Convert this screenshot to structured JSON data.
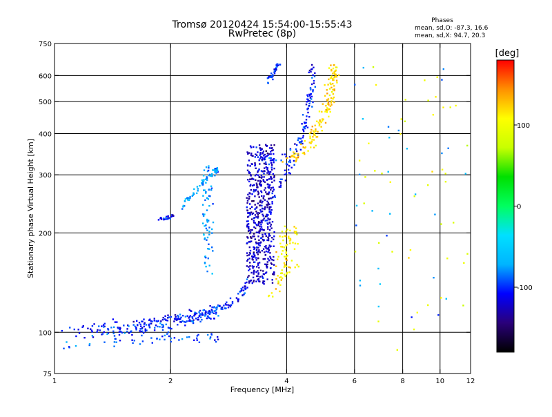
{
  "chart_data": {
    "type": "scatter",
    "title": "Tromsø 20120424 15:54:00-15:55:43",
    "subtitle": "RwPretec (8p)",
    "xlabel": "Frequency [MHz]",
    "ylabel": "Stationary phase Virtual Height [km]",
    "x_scale": "log",
    "y_scale": "log",
    "xlim": [
      1,
      12
    ],
    "ylim": [
      75,
      750
    ],
    "x_ticks": [
      1,
      2,
      4,
      6,
      8,
      10,
      12
    ],
    "x_tick_labels": [
      "1",
      "2",
      "4",
      "6",
      "8",
      "10",
      "12"
    ],
    "y_ticks": [
      75,
      100,
      200,
      300,
      400,
      500,
      600,
      750
    ],
    "y_tick_labels": [
      "75",
      "100",
      "200",
      "300",
      "400",
      "500",
      "600",
      "750"
    ],
    "x_grid": [
      2,
      4,
      6,
      8,
      10
    ],
    "y_grid": [
      100,
      200,
      300,
      400,
      500,
      600
    ],
    "grid": true,
    "stats": {
      "heading": "Phases",
      "line1": "mean, sd,O: -87.3, 16.6",
      "line2": "mean, sd,X:  94.7, 20.3"
    },
    "colorbar": {
      "label": "[deg]",
      "range": [
        -180,
        180
      ],
      "ticks": [
        100,
        0,
        -100
      ],
      "tick_labels": [
        "100",
        "0",
        "-100"
      ],
      "colors": [
        "#000000",
        "#2a007a",
        "#0000ff",
        "#00b4ff",
        "#00e0ff",
        "#00ff60",
        "#00e000",
        "#c8ff00",
        "#ffff00",
        "#ff9000",
        "#ff0000"
      ]
    },
    "traces": [
      {
        "name": "",
        "mode": "curve",
        "phase": -110,
        "count": 240,
        "jitter": 0.025,
        "points": [
          [
            1.03,
            100
          ],
          [
            1.2,
            104
          ],
          [
            1.5,
            106
          ],
          [
            1.8,
            107.5
          ],
          [
            2.0,
            110
          ],
          [
            2.3,
            113
          ],
          [
            2.6,
            117
          ],
          [
            2.8,
            120
          ],
          [
            3.0,
            127
          ],
          [
            3.15,
            138
          ],
          [
            3.3,
            160
          ],
          [
            3.45,
            195
          ],
          [
            3.6,
            240
          ],
          [
            3.8,
            275
          ],
          [
            4.0,
            305
          ],
          [
            4.2,
            340
          ],
          [
            4.4,
            395
          ],
          [
            4.5,
            450
          ],
          [
            4.6,
            530
          ],
          [
            4.65,
            640
          ]
        ]
      },
      {
        "name": "",
        "mode": "curve",
        "phase": -100,
        "count": 180,
        "jitter": 0.03,
        "points": [
          [
            1.25,
            100
          ],
          [
            1.5,
            101
          ],
          [
            1.7,
            103
          ],
          [
            1.9,
            105
          ],
          [
            2.1,
            108
          ],
          [
            2.3,
            111
          ],
          [
            2.5,
            114
          ],
          [
            2.7,
            117
          ]
        ]
      },
      {
        "name": "",
        "mode": "curve",
        "phase": -95,
        "count": 55,
        "jitter": 0.03,
        "points": [
          [
            1.05,
            92
          ],
          [
            1.3,
            94
          ],
          [
            1.6,
            95
          ],
          [
            1.9,
            96
          ],
          [
            2.2,
            96
          ],
          [
            2.5,
            97
          ],
          [
            2.7,
            97
          ]
        ]
      },
      {
        "name": "",
        "mode": "curve",
        "phase": -75,
        "count": 60,
        "jitter": 0.015,
        "points": [
          [
            2.15,
            240
          ],
          [
            2.3,
            265
          ],
          [
            2.45,
            290
          ],
          [
            2.6,
            305
          ],
          [
            2.65,
            310
          ]
        ]
      },
      {
        "name": "",
        "mode": "curve",
        "phase": -100,
        "count": 50,
        "jitter": 0.025,
        "points": [
          [
            3.35,
            360
          ],
          [
            3.6,
            332
          ],
          [
            3.85,
            336
          ],
          [
            4.1,
            350
          ],
          [
            4.3,
            375
          ],
          [
            4.5,
            420
          ],
          [
            4.6,
            480
          ],
          [
            4.65,
            560
          ],
          [
            4.7,
            640
          ]
        ]
      },
      {
        "name": "",
        "mode": "curve",
        "phase": -100,
        "count": 35,
        "jitter": 0.015,
        "points": [
          [
            3.55,
            575
          ],
          [
            3.65,
            600
          ],
          [
            3.75,
            630
          ],
          [
            3.85,
            655
          ]
        ]
      },
      {
        "name": "",
        "mode": "curve",
        "phase": -110,
        "count": 22,
        "jitter": 0.01,
        "points": [
          [
            1.85,
            218
          ],
          [
            1.95,
            222
          ],
          [
            2.05,
            225
          ]
        ]
      },
      {
        "name": "",
        "mode": "box",
        "phase": -75,
        "count": 70,
        "range": [
          [
            2.42,
            2.58
          ],
          [
            150,
            320
          ]
        ]
      },
      {
        "name": "",
        "mode": "box",
        "phase": -125,
        "count": 520,
        "range": [
          [
            3.15,
            3.72
          ],
          [
            140,
            370
          ]
        ]
      },
      {
        "name": "",
        "mode": "curve",
        "phase": 120,
        "count": 150,
        "jitter": 0.035,
        "points": [
          [
            4.0,
            335
          ],
          [
            4.3,
            345
          ],
          [
            4.6,
            380
          ],
          [
            4.85,
            420
          ],
          [
            5.05,
            470
          ],
          [
            5.2,
            530
          ],
          [
            5.3,
            590
          ],
          [
            5.35,
            640
          ]
        ]
      },
      {
        "name": "",
        "mode": "curve",
        "phase": 115,
        "count": 45,
        "jitter": 0.025,
        "points": [
          [
            3.6,
            128
          ],
          [
            3.75,
            132
          ],
          [
            3.85,
            142
          ],
          [
            3.95,
            165
          ],
          [
            4.05,
            185
          ],
          [
            4.2,
            205
          ]
        ]
      },
      {
        "name": "",
        "mode": "box",
        "phase": 110,
        "count": 40,
        "range": [
          [
            3.75,
            4.3
          ],
          [
            150,
            210
          ]
        ]
      },
      {
        "name": "",
        "mode": "box",
        "phase": 95,
        "count": 45,
        "range": [
          [
            6.0,
            11.8
          ],
          [
            85,
            640
          ]
        ]
      },
      {
        "name": "",
        "mode": "box",
        "phase": -75,
        "count": 30,
        "range": [
          [
            6.0,
            11.8
          ],
          [
            110,
            640
          ]
        ]
      }
    ]
  }
}
